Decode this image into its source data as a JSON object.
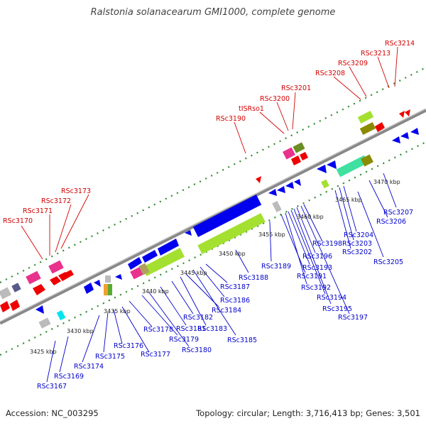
{
  "title": "Ralstonia solanacearum GMI1000, complete genome",
  "footer": {
    "accession": "Accession: NC_003295",
    "summary": "Topology: circular; Length: 3,716,413 bp; Genes: 3,501"
  },
  "colors": {
    "top_label": "#d40000",
    "bottom_label": "#0000cc",
    "backbone": "#888888",
    "tick": "#2e8b2e"
  },
  "kbp_labels": [
    "3425 kbp",
    "3430 kbp",
    "3435 kbp",
    "3440 kbp",
    "3445 kbp",
    "3450 kbp",
    "3455 kbp",
    "3460 kbp",
    "3465 kbp",
    "3470 kbp"
  ],
  "top_genes": [
    "RSc3170",
    "RSc3171",
    "RSc3172",
    "RSc3173",
    "RSc3190",
    "tISRso1",
    "RSc3200",
    "RSc3201",
    "RSc3208",
    "RSc3209",
    "RSc3213",
    "RSc3214"
  ],
  "bottom_genes": [
    "RSc3167",
    "RSc3169",
    "RSc3174",
    "RSc3175",
    "RSc3176",
    "RSc3177",
    "RSc3178",
    "RSc3179",
    "RSc3180",
    "RSc3181",
    "RSc3182",
    "RSc3183",
    "RSc3184",
    "RSc3185",
    "RSc3186",
    "RSc3187",
    "RSc3188",
    "RSc3189",
    "RSc3191",
    "RSc3192",
    "RSc3193",
    "RSc3194",
    "RSc3195",
    "RSc3196",
    "RSc3197",
    "RSc3198",
    "RSc3202",
    "RSc3203",
    "RSc3204",
    "RSc3205",
    "RSc3206",
    "RSc3207"
  ]
}
